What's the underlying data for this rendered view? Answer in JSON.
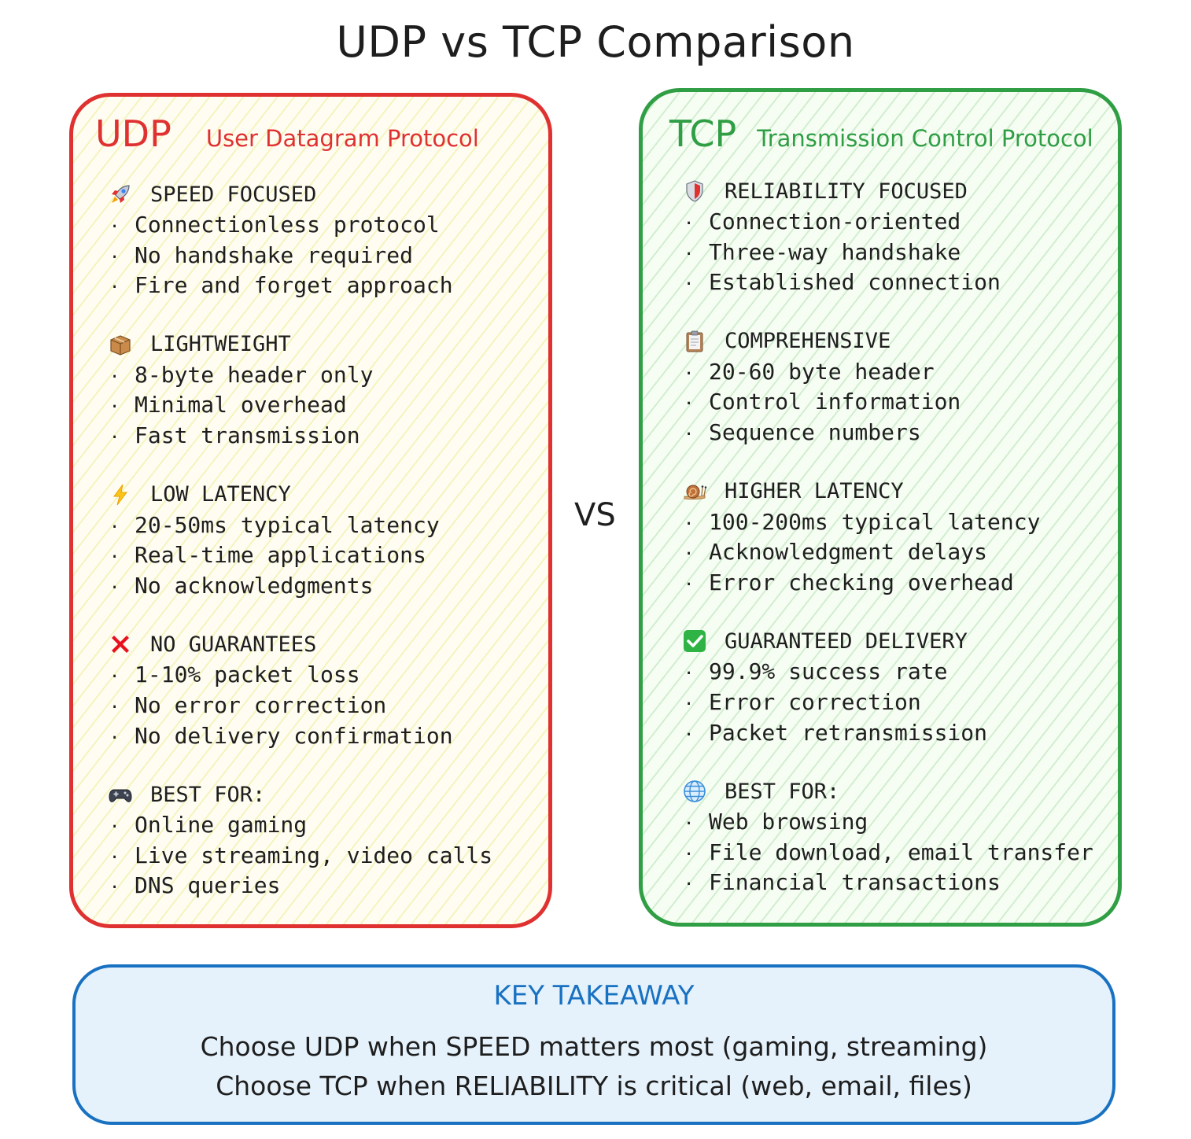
{
  "title": "UDP vs TCP Comparison",
  "vs_label": "VS",
  "colors": {
    "udp": "#e03131",
    "tcp": "#2f9e44",
    "takeaway": "#1971c2",
    "takeaway_bg": "#e5f2fb"
  },
  "udp": {
    "abbr": "UDP",
    "full_name": "User Datagram Protocol",
    "sections": [
      {
        "icon": "rocket-icon",
        "heading": "SPEED FOCUSED",
        "bullets": [
          "Connectionless protocol",
          "No handshake required",
          "Fire and forget approach"
        ]
      },
      {
        "icon": "package-icon",
        "heading": "LIGHTWEIGHT",
        "bullets": [
          "8-byte header only",
          "Minimal overhead",
          "Fast transmission"
        ]
      },
      {
        "icon": "lightning-icon",
        "heading": "LOW LATENCY",
        "bullets": [
          "20-50ms typical latency",
          "Real-time applications",
          "No acknowledgments"
        ]
      },
      {
        "icon": "cross-mark-icon",
        "heading": "NO GUARANTEES",
        "bullets": [
          "1-10% packet loss",
          "No error correction",
          "No delivery confirmation"
        ]
      },
      {
        "icon": "game-controller-icon",
        "heading": "BEST FOR:",
        "bullets": [
          "Online gaming",
          "Live streaming, video calls",
          "DNS queries"
        ]
      }
    ]
  },
  "tcp": {
    "abbr": "TCP",
    "full_name": "Transmission Control Protocol",
    "sections": [
      {
        "icon": "shield-icon",
        "heading": "RELIABILITY FOCUSED",
        "bullets": [
          "Connection-oriented",
          "Three-way handshake",
          "Established connection"
        ]
      },
      {
        "icon": "clipboard-icon",
        "heading": "COMPREHENSIVE",
        "bullets": [
          "20-60 byte header",
          "Control information",
          "Sequence numbers"
        ]
      },
      {
        "icon": "snail-icon",
        "heading": "HIGHER LATENCY",
        "bullets": [
          "100-200ms typical latency",
          "Acknowledgment delays",
          "Error checking overhead"
        ]
      },
      {
        "icon": "check-mark-icon",
        "heading": "GUARANTEED DELIVERY",
        "bullets": [
          "99.9% success rate",
          "Error correction",
          "Packet retransmission"
        ]
      },
      {
        "icon": "globe-icon",
        "heading": "BEST FOR:",
        "bullets": [
          "Web browsing",
          "File download, email transfer",
          "Financial transactions"
        ]
      }
    ]
  },
  "takeaway": {
    "title": "KEY TAKEAWAY",
    "lines": [
      "Choose UDP when SPEED matters most (gaming, streaming)",
      "Choose TCP when RELIABILITY is critical (web, email, files)"
    ]
  }
}
